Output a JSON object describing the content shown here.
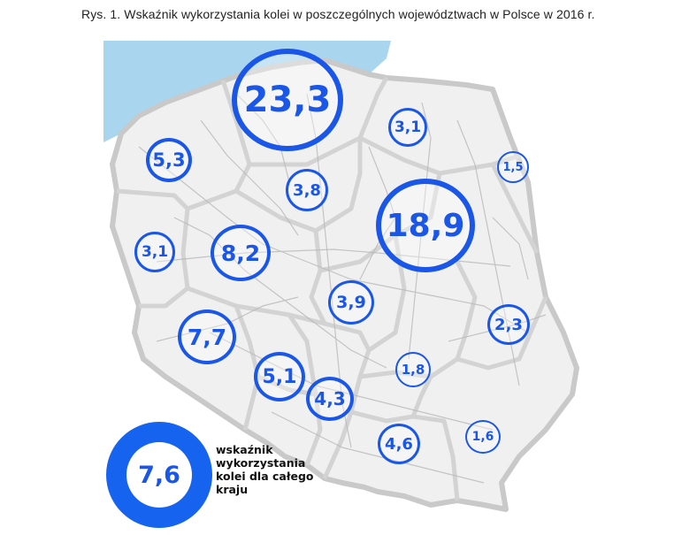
{
  "caption": "Rys. 1. Wskaźnik wykorzystania kolei w poszczególnych województwach w Polsce w 2016 r.",
  "colors": {
    "accent": "#1a56e8",
    "sea": "#a9d6ee",
    "land": "#f0f0f0",
    "border": "#c9c9c9"
  },
  "regions": [
    {
      "name": "pomorskie",
      "value": "23,3"
    },
    {
      "name": "warmińsko-mazurskie",
      "value": "3,1"
    },
    {
      "name": "zachodniopomorskie",
      "value": "5,3"
    },
    {
      "name": "podlaskie",
      "value": "1,5"
    },
    {
      "name": "kujawsko-pomorskie",
      "value": "3,8"
    },
    {
      "name": "mazowieckie",
      "value": "18,9"
    },
    {
      "name": "lubuskie",
      "value": "3,1"
    },
    {
      "name": "wielkopolskie",
      "value": "8,2"
    },
    {
      "name": "łódzkie",
      "value": "3,9"
    },
    {
      "name": "lubelskie",
      "value": "2,3"
    },
    {
      "name": "dolnośląskie",
      "value": "7,7"
    },
    {
      "name": "opolskie",
      "value": "5,1"
    },
    {
      "name": "świętokrzyskie",
      "value": "1,8"
    },
    {
      "name": "śląskie",
      "value": "4,3"
    },
    {
      "name": "małopolskie",
      "value": "4,6"
    },
    {
      "name": "podkarpackie",
      "value": "1,6"
    }
  ],
  "legend": {
    "value": "7,6",
    "text": "wskaźnik\nwykorzystania\nkolei dla całego\nkraju"
  }
}
